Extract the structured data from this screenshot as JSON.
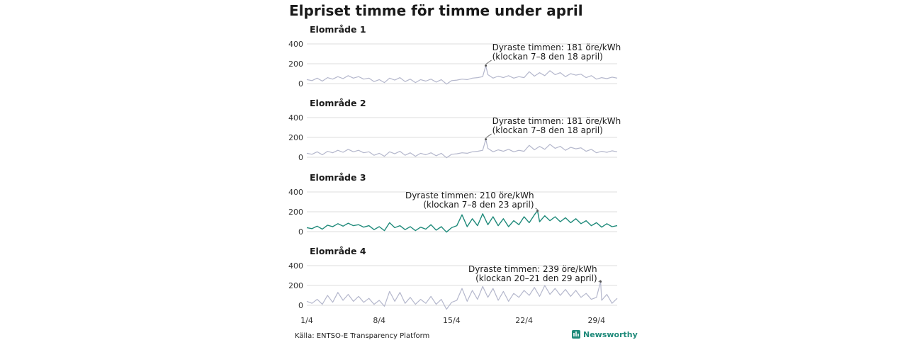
{
  "title": "Elpriset timme för timme under april",
  "source": "Källa: ENTSO-E Transparency Platform",
  "brand": "Newsworthy",
  "colors": {
    "highlight": "#1f8a7a",
    "muted": "#b4b7cc",
    "grid": "#dcdcdc",
    "text": "#1a1a1a"
  },
  "chart_data": [
    {
      "type": "line",
      "title": "Elområde 1",
      "highlight": false,
      "xlim": [
        1,
        31
      ],
      "ylim": [
        0,
        400
      ],
      "yticks": [
        0,
        200,
        400
      ],
      "xticks": [
        {
          "v": 1,
          "label": "1/4"
        },
        {
          "v": 8,
          "label": "8/4"
        },
        {
          "v": 15,
          "label": "15/4"
        },
        {
          "v": 22,
          "label": "22/4"
        },
        {
          "v": 29,
          "label": "29/4"
        }
      ],
      "series": [
        {
          "x": [
            1.0,
            1.5,
            2.0,
            2.5,
            3.0,
            3.5,
            4.0,
            4.5,
            5.0,
            5.5,
            6.0,
            6.5,
            7.0,
            7.5,
            8.0,
            8.5,
            9.0,
            9.5,
            10.0,
            10.5,
            11.0,
            11.5,
            12.0,
            12.5,
            13.0,
            13.5,
            14.0,
            14.5,
            15.0,
            15.5,
            16.0,
            16.5,
            17.0,
            17.5,
            18.0,
            18.3,
            18.5,
            19.0,
            19.5,
            20.0,
            20.5,
            21.0,
            21.5,
            22.0,
            22.5,
            23.0,
            23.5,
            24.0,
            24.5,
            25.0,
            25.5,
            26.0,
            26.5,
            27.0,
            27.5,
            28.0,
            28.5,
            29.0,
            29.5,
            30.0,
            30.5,
            31.0
          ],
          "y": [
            40,
            30,
            55,
            25,
            60,
            45,
            70,
            50,
            80,
            55,
            70,
            45,
            55,
            20,
            40,
            10,
            55,
            35,
            60,
            20,
            45,
            10,
            40,
            25,
            45,
            15,
            40,
            -5,
            30,
            35,
            45,
            40,
            55,
            60,
            70,
            181,
            90,
            55,
            75,
            60,
            80,
            55,
            70,
            60,
            120,
            75,
            110,
            80,
            130,
            90,
            110,
            70,
            100,
            85,
            95,
            60,
            80,
            45,
            60,
            50,
            65,
            55
          ]
        }
      ],
      "annotation": {
        "lines": [
          "Dyraste timmen: 181 öre/kWh",
          "(klockan 7–8 den 18 april)"
        ],
        "x": 18.3,
        "y": 181,
        "align": "start"
      }
    },
    {
      "type": "line",
      "title": "Elområde 2",
      "highlight": false,
      "xlim": [
        1,
        31
      ],
      "ylim": [
        0,
        400
      ],
      "yticks": [
        0,
        200,
        400
      ],
      "xticks": [
        {
          "v": 1,
          "label": "1/4"
        },
        {
          "v": 8,
          "label": "8/4"
        },
        {
          "v": 15,
          "label": "15/4"
        },
        {
          "v": 22,
          "label": "22/4"
        },
        {
          "v": 29,
          "label": "29/4"
        }
      ],
      "series": [
        {
          "x": [
            1.0,
            1.5,
            2.0,
            2.5,
            3.0,
            3.5,
            4.0,
            4.5,
            5.0,
            5.5,
            6.0,
            6.5,
            7.0,
            7.5,
            8.0,
            8.5,
            9.0,
            9.5,
            10.0,
            10.5,
            11.0,
            11.5,
            12.0,
            12.5,
            13.0,
            13.5,
            14.0,
            14.5,
            15.0,
            15.5,
            16.0,
            16.5,
            17.0,
            17.5,
            18.0,
            18.3,
            18.5,
            19.0,
            19.5,
            20.0,
            20.5,
            21.0,
            21.5,
            22.0,
            22.5,
            23.0,
            23.5,
            24.0,
            24.5,
            25.0,
            25.5,
            26.0,
            26.5,
            27.0,
            27.5,
            28.0,
            28.5,
            29.0,
            29.5,
            30.0,
            30.5,
            31.0
          ],
          "y": [
            40,
            30,
            55,
            25,
            60,
            45,
            70,
            50,
            80,
            55,
            70,
            45,
            55,
            20,
            40,
            10,
            55,
            35,
            60,
            20,
            45,
            10,
            40,
            25,
            45,
            15,
            40,
            -5,
            30,
            35,
            45,
            40,
            55,
            60,
            70,
            181,
            90,
            55,
            75,
            60,
            80,
            55,
            70,
            60,
            120,
            75,
            110,
            80,
            130,
            90,
            110,
            70,
            100,
            85,
            95,
            60,
            80,
            45,
            60,
            50,
            65,
            55
          ]
        }
      ],
      "annotation": {
        "lines": [
          "Dyraste timmen: 181 öre/kWh",
          "(klockan 7–8 den 18 april)"
        ],
        "x": 18.3,
        "y": 181,
        "align": "start"
      }
    },
    {
      "type": "line",
      "title": "Elområde 3",
      "highlight": true,
      "xlim": [
        1,
        31
      ],
      "ylim": [
        0,
        400
      ],
      "yticks": [
        0,
        200,
        400
      ],
      "xticks": [
        {
          "v": 1,
          "label": "1/4"
        },
        {
          "v": 8,
          "label": "8/4"
        },
        {
          "v": 15,
          "label": "15/4"
        },
        {
          "v": 22,
          "label": "22/4"
        },
        {
          "v": 29,
          "label": "29/4"
        }
      ],
      "series": [
        {
          "x": [
            1.0,
            1.5,
            2.0,
            2.5,
            3.0,
            3.5,
            4.0,
            4.5,
            5.0,
            5.5,
            6.0,
            6.5,
            7.0,
            7.5,
            8.0,
            8.5,
            9.0,
            9.5,
            10.0,
            10.5,
            11.0,
            11.5,
            12.0,
            12.5,
            13.0,
            13.5,
            14.0,
            14.5,
            15.0,
            15.5,
            16.0,
            16.5,
            17.0,
            17.5,
            18.0,
            18.5,
            19.0,
            19.5,
            20.0,
            20.5,
            21.0,
            21.5,
            22.0,
            22.5,
            23.0,
            23.3,
            23.5,
            24.0,
            24.5,
            25.0,
            25.5,
            26.0,
            26.5,
            27.0,
            27.5,
            28.0,
            28.5,
            29.0,
            29.5,
            30.0,
            30.5,
            31.0
          ],
          "y": [
            40,
            30,
            55,
            25,
            65,
            50,
            80,
            55,
            85,
            60,
            70,
            45,
            60,
            20,
            50,
            10,
            90,
            40,
            60,
            20,
            50,
            10,
            45,
            25,
            70,
            15,
            50,
            -5,
            40,
            60,
            170,
            50,
            130,
            60,
            180,
            70,
            150,
            60,
            130,
            50,
            110,
            70,
            150,
            90,
            170,
            210,
            100,
            160,
            110,
            150,
            100,
            140,
            90,
            130,
            80,
            110,
            60,
            90,
            45,
            80,
            50,
            60
          ]
        }
      ],
      "annotation": {
        "lines": [
          "Dyraste timmen: 210 öre/kWh",
          "(klockan 7–8 den 23 april)"
        ],
        "x": 23.3,
        "y": 210,
        "align": "end"
      }
    },
    {
      "type": "line",
      "title": "Elområde 4",
      "highlight": false,
      "xlim": [
        1,
        31
      ],
      "ylim": [
        0,
        400
      ],
      "yticks": [
        0,
        200,
        400
      ],
      "xticks": [
        {
          "v": 1,
          "label": "1/4"
        },
        {
          "v": 8,
          "label": "8/4"
        },
        {
          "v": 15,
          "label": "15/4"
        },
        {
          "v": 22,
          "label": "22/4"
        },
        {
          "v": 29,
          "label": "29/4"
        }
      ],
      "series": [
        {
          "x": [
            1.0,
            1.5,
            2.0,
            2.5,
            3.0,
            3.5,
            4.0,
            4.5,
            5.0,
            5.5,
            6.0,
            6.5,
            7.0,
            7.5,
            8.0,
            8.5,
            9.0,
            9.5,
            10.0,
            10.5,
            11.0,
            11.5,
            12.0,
            12.5,
            13.0,
            13.5,
            14.0,
            14.5,
            15.0,
            15.5,
            16.0,
            16.5,
            17.0,
            17.5,
            18.0,
            18.5,
            19.0,
            19.5,
            20.0,
            20.5,
            21.0,
            21.5,
            22.0,
            22.5,
            23.0,
            23.5,
            24.0,
            24.5,
            25.0,
            25.5,
            26.0,
            26.5,
            27.0,
            27.5,
            28.0,
            28.5,
            29.0,
            29.4,
            29.5,
            30.0,
            30.5,
            31.0
          ],
          "y": [
            40,
            20,
            60,
            10,
            100,
            30,
            130,
            50,
            110,
            40,
            90,
            30,
            70,
            10,
            50,
            -10,
            140,
            40,
            130,
            20,
            80,
            10,
            60,
            20,
            90,
            10,
            60,
            -40,
            30,
            50,
            170,
            40,
            150,
            60,
            190,
            80,
            170,
            50,
            140,
            40,
            120,
            80,
            150,
            100,
            180,
            90,
            200,
            110,
            170,
            100,
            160,
            90,
            150,
            80,
            120,
            60,
            80,
            239,
            50,
            110,
            20,
            70
          ]
        }
      ],
      "annotation": {
        "lines": [
          "Dyraste timmen: 239 öre/kWh",
          "(klockan 20–21 den 29 april)"
        ],
        "x": 29.4,
        "y": 239,
        "align": "end"
      }
    }
  ]
}
